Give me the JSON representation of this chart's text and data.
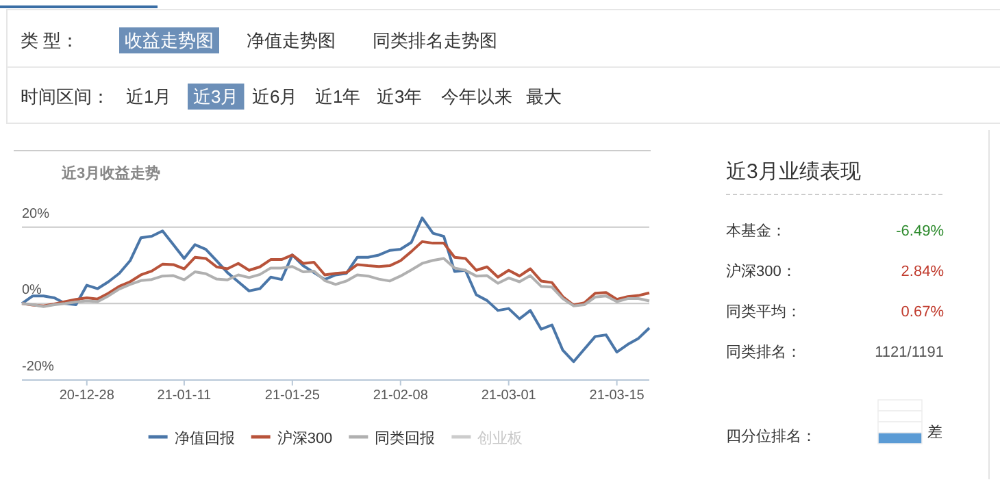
{
  "chart_data": [
    {
      "type": "other",
      "annotations": [
        "类 型：",
        "收益走势图",
        "净值走势图",
        "同类排名走势图",
        "时间区间：",
        "近1月",
        "近3月",
        "近6月",
        "近1年",
        "近3年",
        "今年以来",
        "最大"
      ]
    },
    {
      "type": "line",
      "title": "近3月收益走势",
      "categories": [
        null,
        null,
        null,
        null,
        null,
        null,
        "20-12-28",
        null,
        null,
        null,
        null,
        null,
        null,
        null,
        null,
        "21-01-11",
        null,
        null,
        null,
        null,
        null,
        null,
        null,
        null,
        null,
        "21-01-25",
        null,
        null,
        null,
        null,
        null,
        null,
        null,
        null,
        null,
        "21-02-08",
        null,
        null,
        null,
        null,
        null,
        null,
        null,
        null,
        null,
        "21-03-01",
        null,
        null,
        null,
        null,
        null,
        null,
        null,
        null,
        null,
        "21-03-15",
        null,
        null,
        null
      ],
      "ylim": [
        -20,
        40
      ],
      "yticks": [
        {
          "value": -20,
          "label": "-20%"
        },
        {
          "value": 0,
          "label": "0%"
        },
        {
          "value": 20,
          "label": "20%"
        }
      ],
      "grid": "y",
      "legend": "bottom",
      "marker": "none",
      "line_style": "solid",
      "series": [
        {
          "name": "净值回报",
          "color": "#4a76a8",
          "values": [
            0,
            2,
            2,
            1.5,
            0,
            -0.3,
            4.8,
            3.9,
            5.7,
            7.9,
            11.2,
            17.2,
            17.6,
            19,
            15.4,
            11.8,
            15.4,
            14.2,
            11.2,
            8.1,
            5.7,
            3.3,
            3.9,
            6.9,
            6.3,
            12.7,
            9.9,
            8.1,
            6.3,
            7.5,
            7.9,
            12.1,
            12.1,
            12.7,
            13.9,
            14.2,
            16,
            22.4,
            18.4,
            17.6,
            8.4,
            8.7,
            2.3,
            0.8,
            -1.8,
            -1.3,
            -4,
            -1.8,
            -6.7,
            -5.6,
            -12.2,
            -15.2,
            -11.9,
            -8.6,
            -8.2,
            -12.7,
            -10.7,
            -9.1,
            -6.4
          ]
        },
        {
          "name": "沪深300",
          "color": "#b8533a",
          "values": [
            0,
            -0.4,
            -0.6,
            -0.1,
            0.5,
            1.1,
            1.5,
            1.2,
            2.7,
            4.5,
            5.7,
            7.5,
            8.5,
            10.3,
            10.2,
            9.1,
            12.1,
            11.8,
            9.6,
            9.1,
            10.5,
            8.7,
            9.6,
            11.5,
            11.5,
            12.7,
            10.5,
            10.8,
            7.5,
            7.9,
            8.1,
            10.2,
            9.9,
            9.7,
            9.9,
            11.2,
            13.6,
            16.2,
            15.8,
            15.8,
            12.1,
            11.8,
            8.7,
            9.6,
            6.9,
            8.7,
            7.2,
            9.1,
            5.9,
            5.5,
            1.8,
            -0.4,
            0.2,
            2.7,
            2.9,
            1.1,
            1.8,
            2.1,
            2.8
          ]
        },
        {
          "name": "同类回报",
          "color": "#b0b0b0",
          "values": [
            0,
            -0.3,
            -0.8,
            -0.3,
            0,
            0.4,
            0.7,
            0.5,
            2,
            3.8,
            5,
            6,
            6.3,
            7.2,
            7.3,
            6.2,
            8.3,
            7.8,
            6.4,
            6.2,
            7.5,
            6.8,
            7.6,
            9.3,
            9.3,
            9.7,
            8.3,
            8.5,
            6,
            5,
            5.9,
            7.5,
            7.2,
            6.4,
            5.9,
            7.2,
            8.8,
            10.5,
            11.3,
            11.8,
            9.3,
            8.7,
            7.2,
            7.3,
            5.3,
            6.7,
            5.7,
            7.3,
            4.5,
            4.3,
            1.3,
            -0.6,
            -0.3,
            1.7,
            2,
            0.5,
            1.3,
            1.3,
            0.7
          ]
        },
        {
          "name": "创业板",
          "color": "#cccccc",
          "values": [
            null,
            null,
            null,
            null,
            null,
            null,
            null,
            null,
            null,
            null,
            null,
            null,
            null,
            null,
            null,
            null,
            null,
            null,
            null,
            null,
            null,
            null,
            null,
            null,
            null,
            null,
            null,
            null,
            null,
            null,
            null,
            null,
            null,
            null,
            null,
            null,
            null,
            null,
            null,
            null,
            null,
            null,
            null,
            null,
            null,
            null,
            null,
            null,
            null,
            null,
            null,
            null,
            null,
            null,
            null,
            null,
            null,
            null,
            null
          ]
        }
      ]
    },
    {
      "type": "other",
      "title": "近3月业绩表现",
      "annotations": [
        "本基金：",
        "-6.49%",
        "沪深300：",
        "2.84%",
        "同类平均：",
        "0.67%",
        "同类排名：",
        "1121/1191",
        "四分位排名：",
        "差"
      ]
    }
  ]
}
